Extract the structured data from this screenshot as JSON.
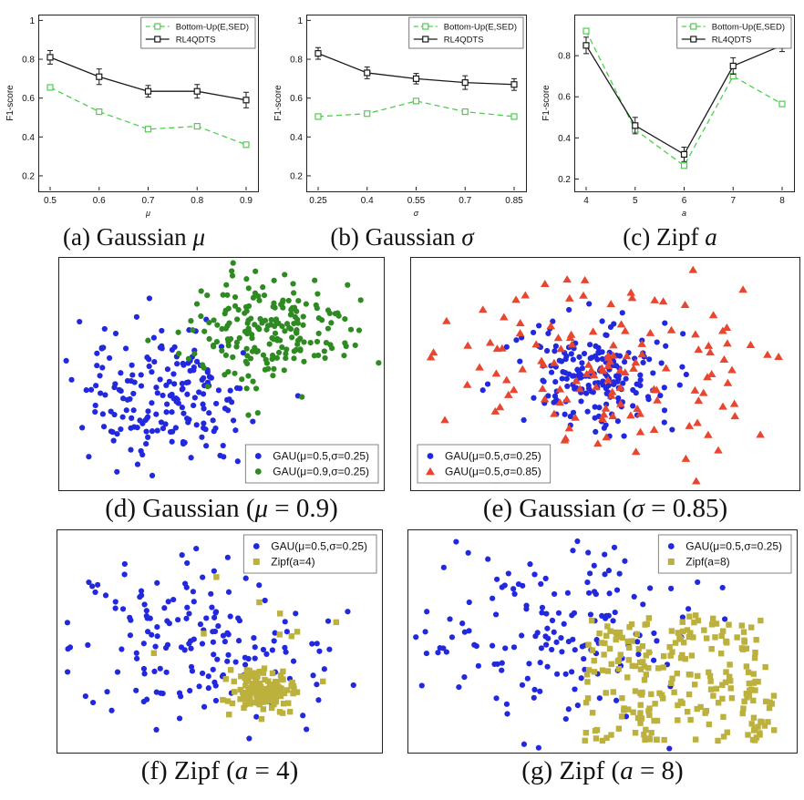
{
  "colors": {
    "light_green": "#4cd04c",
    "black": "#1a1a1a",
    "blue": "#2228dd",
    "dark_green": "#2e8b22",
    "red": "#e8462f",
    "dark_yellow": "#bdb13d"
  },
  "captions": {
    "a": {
      "pre": "(a) Gaussian ",
      "var": "μ",
      "rest": ""
    },
    "b": {
      "pre": "(b) Gaussian ",
      "var": "σ",
      "rest": ""
    },
    "c": {
      "pre": "(c) Zipf ",
      "var": "a",
      "rest": ""
    },
    "d": {
      "pre": "(d) Gaussian (",
      "var": "μ",
      "rest": " = 0.9)"
    },
    "e": {
      "pre": "(e) Gaussian (",
      "var": "σ",
      "rest": " = 0.85)"
    },
    "f": {
      "pre": "(f) Zipf (",
      "var": "a",
      "rest": " = 4)"
    },
    "g": {
      "pre": "(g) Zipf (",
      "var": "a",
      "rest": " = 8)"
    }
  },
  "chart_data": [
    {
      "id": "gaussian-mu",
      "type": "line",
      "xlabel": "μ",
      "ylabel": "F1-score",
      "x": [
        0.5,
        0.6,
        0.7,
        0.8,
        0.9
      ],
      "yticks": [
        0.2,
        0.4,
        0.6,
        0.8,
        1
      ],
      "ylim": [
        0.12,
        1.03
      ],
      "legend_position": "top-right",
      "series": [
        {
          "name": "Bottom-Up(E,SED)",
          "color": "light_green",
          "dashed": true,
          "values": [
            0.655,
            0.53,
            0.44,
            0.455,
            0.36
          ]
        },
        {
          "name": "RL4QDTS",
          "color": "black",
          "dashed": false,
          "values": [
            0.81,
            0.71,
            0.635,
            0.635,
            0.59
          ],
          "err": [
            0.035,
            0.04,
            0.03,
            0.035,
            0.04
          ]
        }
      ]
    },
    {
      "id": "gaussian-sigma",
      "type": "line",
      "xlabel": "σ",
      "ylabel": "F1-score",
      "x": [
        0.25,
        0.4,
        0.55,
        0.7,
        0.85
      ],
      "yticks": [
        0.2,
        0.4,
        0.6,
        0.8,
        1
      ],
      "ylim": [
        0.12,
        1.03
      ],
      "legend_position": "top-right",
      "series": [
        {
          "name": "Bottom-Up(E,SED)",
          "color": "light_green",
          "dashed": true,
          "values": [
            0.505,
            0.52,
            0.585,
            0.53,
            0.505
          ]
        },
        {
          "name": "RL4QDTS",
          "color": "black",
          "dashed": false,
          "values": [
            0.83,
            0.73,
            0.7,
            0.68,
            0.67
          ],
          "err": [
            0.03,
            0.03,
            0.027,
            0.035,
            0.03
          ]
        }
      ]
    },
    {
      "id": "zipf-a",
      "type": "line",
      "xlabel": "a",
      "ylabel": "F1-score",
      "x": [
        4,
        5,
        6,
        7,
        8
      ],
      "yticks": [
        0.2,
        0.4,
        0.6,
        0.8
      ],
      "ylim": [
        0.14,
        1.0
      ],
      "legend_position": "top-right",
      "series": [
        {
          "name": "Bottom-Up(E,SED)",
          "color": "light_green",
          "dashed": true,
          "values": [
            0.92,
            0.44,
            0.265,
            0.7,
            0.565
          ]
        },
        {
          "name": "RL4QDTS",
          "color": "black",
          "dashed": false,
          "values": [
            0.85,
            0.46,
            0.32,
            0.75,
            0.85
          ],
          "err": [
            0.04,
            0.04,
            0.035,
            0.04,
            0.03
          ]
        }
      ]
    },
    {
      "id": "scatter-gaussian-mu09",
      "type": "scatter",
      "legend_position": "bottom-right",
      "series": [
        {
          "name": "GAU(μ=0.5,σ=0.25)",
          "marker": "circle",
          "color": "blue",
          "clusters": [
            {
              "dist": "gaussian",
              "cx": 0.33,
              "cy": 0.6,
              "sx": 0.125,
              "sy": 0.145,
              "n": 190,
              "seed": 101
            }
          ]
        },
        {
          "name": "GAU(μ=0.9,σ=0.25)",
          "marker": "circle",
          "color": "dark_green",
          "clusters": [
            {
              "dist": "gaussian",
              "cx": 0.63,
              "cy": 0.32,
              "sx": 0.13,
              "sy": 0.115,
              "n": 210,
              "seed": 202
            }
          ]
        }
      ]
    },
    {
      "id": "scatter-gaussian-sigma085",
      "type": "scatter",
      "legend_position": "bottom-left",
      "series": [
        {
          "name": "GAU(μ=0.5,σ=0.25)",
          "marker": "circle",
          "color": "blue",
          "clusters": [
            {
              "dist": "gaussian",
              "cx": 0.49,
              "cy": 0.5,
              "sx": 0.088,
              "sy": 0.115,
              "n": 195,
              "seed": 303
            }
          ]
        },
        {
          "name": "GAU(μ=0.5,σ=0.85)",
          "marker": "triangle",
          "color": "red",
          "clusters": [
            {
              "dist": "gaussian",
              "cx": 0.5,
              "cy": 0.47,
              "sx": 0.205,
              "sy": 0.21,
              "n": 140,
              "seed": 404
            }
          ]
        }
      ]
    },
    {
      "id": "scatter-zipf-a4",
      "type": "scatter",
      "legend_position": "top-right",
      "series": [
        {
          "name": "GAU(μ=0.5,σ=0.25)",
          "marker": "circle",
          "color": "blue",
          "clusters": [
            {
              "dist": "gaussian",
              "cx": 0.43,
              "cy": 0.5,
              "sx": 0.21,
              "sy": 0.21,
              "n": 175,
              "seed": 505
            }
          ]
        },
        {
          "name": "Zipf(a=4)",
          "marker": "square",
          "color": "dark_yellow",
          "clusters": [
            {
              "dist": "gaussian",
              "cx": 0.64,
              "cy": 0.72,
              "sx": 0.055,
              "sy": 0.05,
              "n": 145,
              "seed": 606
            },
            {
              "dist": "gaussian",
              "cx": 0.55,
              "cy": 0.45,
              "sx": 0.18,
              "sy": 0.2,
              "n": 9,
              "seed": 707
            }
          ]
        }
      ]
    },
    {
      "id": "scatter-zipf-a8",
      "type": "scatter",
      "legend_position": "top-right",
      "series": [
        {
          "name": "GAU(μ=0.5,σ=0.25)",
          "marker": "circle",
          "color": "blue",
          "clusters": [
            {
              "dist": "gaussian",
              "cx": 0.4,
              "cy": 0.47,
              "sx": 0.2,
              "sy": 0.205,
              "n": 170,
              "seed": 808
            }
          ]
        },
        {
          "name": "Zipf(a=8)",
          "marker": "square",
          "color": "dark_yellow",
          "clusters": [
            {
              "dist": "uniform",
              "cx": 0.7,
              "cy": 0.66,
              "sx": 0.245,
              "sy": 0.285,
              "n": 235,
              "seed": 909
            }
          ]
        }
      ]
    }
  ]
}
